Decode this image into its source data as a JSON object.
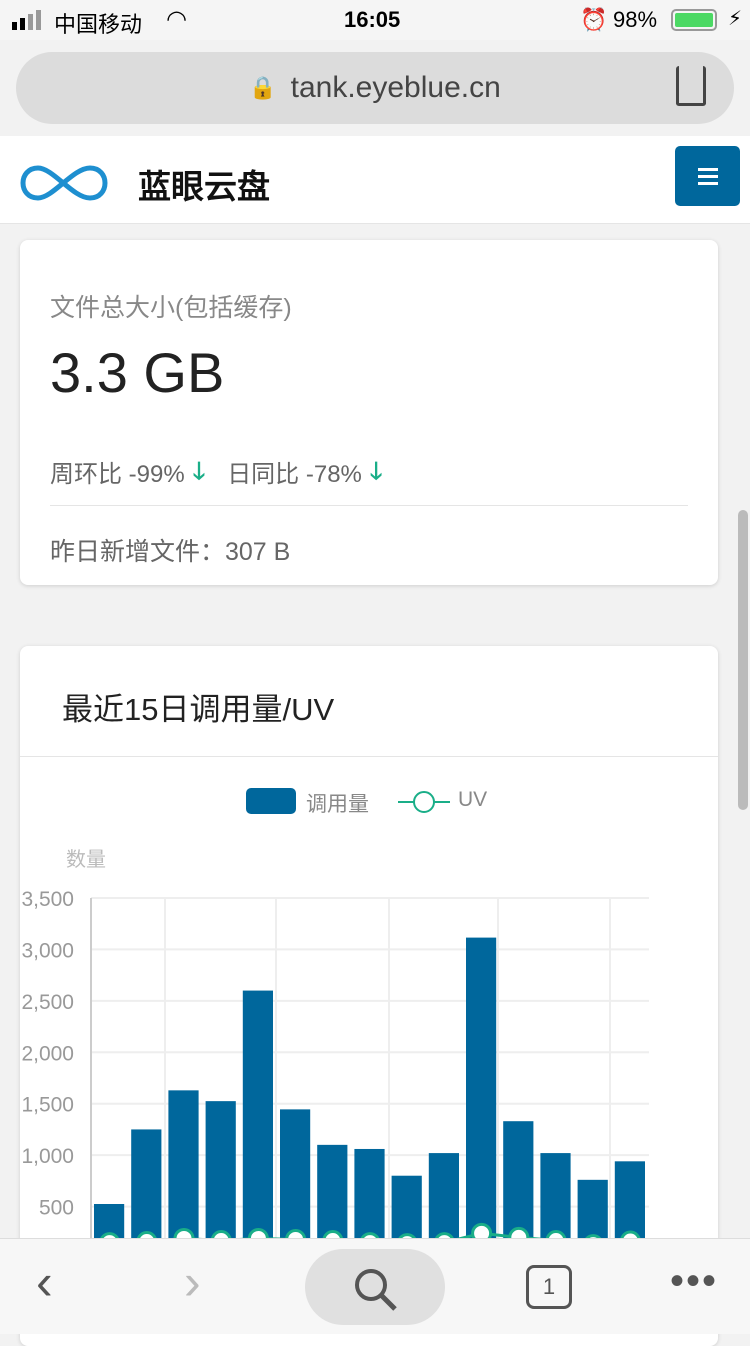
{
  "status_bar": {
    "carrier": "中国移动",
    "time": "16:05",
    "battery": "98%"
  },
  "browser": {
    "url": "tank.eyeblue.cn",
    "tab_count": "1"
  },
  "header": {
    "title": "蓝眼云盘",
    "brand_color": "#00679c"
  },
  "file_card": {
    "label": "文件总大小(包括缓存)",
    "value": "3.3 GB",
    "week_label": "周环比 -99%",
    "day_label": "日同比 -78%",
    "trend_color": "#1aae88",
    "yesterday": "昨日新增文件：307 B"
  },
  "chart_card": {
    "title": "最近15日调用量/UV"
  },
  "chart_data": {
    "type": "bar",
    "ylabel": "数量",
    "ylim": [
      0,
      3500
    ],
    "yticks": [
      "500",
      "1,000",
      "1,500",
      "2,000",
      "2,500",
      "3,000",
      "3,500"
    ],
    "legend": "top",
    "grid": true,
    "series": [
      {
        "name": "调用量",
        "type": "bar",
        "color": "#00679c",
        "values": [
          525,
          1250,
          1630,
          1525,
          2600,
          1445,
          1100,
          1060,
          800,
          1020,
          3115,
          1330,
          1020,
          760,
          940
        ]
      },
      {
        "name": "UV",
        "type": "line",
        "color": "#1aae88",
        "values": [
          150,
          160,
          190,
          170,
          190,
          180,
          170,
          150,
          140,
          150,
          240,
          200,
          170,
          130,
          165
        ]
      }
    ]
  }
}
